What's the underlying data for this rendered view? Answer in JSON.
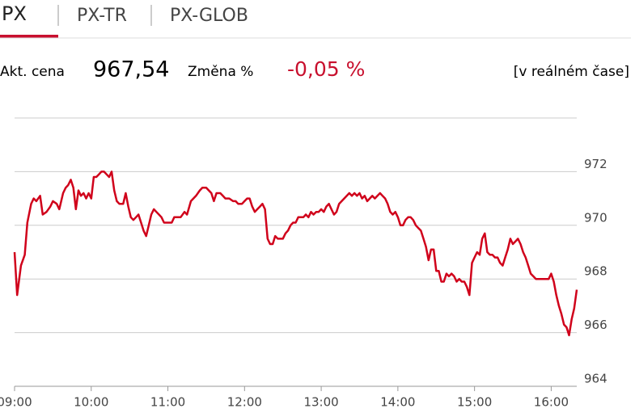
{
  "tabs": [
    "PX",
    "PX-TR",
    "PX-GLOB"
  ],
  "quote": {
    "price_label": "Akt. cena",
    "price": "967,54",
    "change_label": "Změna %",
    "change": "-0,05 %",
    "note": "[v reálném čase]"
  },
  "chart_data": {
    "type": "line",
    "x": [
      "09:00",
      "09:02",
      "09:05",
      "09:08",
      "09:10",
      "09:13",
      "09:15",
      "09:17",
      "09:20",
      "09:22",
      "09:25",
      "09:28",
      "09:30",
      "09:33",
      "09:35",
      "09:38",
      "09:40",
      "09:42",
      "09:44",
      "09:46",
      "09:48",
      "09:50",
      "09:52",
      "09:54",
      "09:56",
      "09:58",
      "10:00",
      "10:02",
      "10:04",
      "10:06",
      "10:08",
      "10:10",
      "10:12",
      "10:14",
      "10:16",
      "10:18",
      "10:20",
      "10:22",
      "10:25",
      "10:27",
      "10:29",
      "10:31",
      "10:33",
      "10:35",
      "10:37",
      "10:39",
      "10:41",
      "10:43",
      "10:45",
      "10:47",
      "10:49",
      "10:51",
      "10:53",
      "10:55",
      "10:57",
      "11:00",
      "11:03",
      "11:05",
      "11:08",
      "11:10",
      "11:13",
      "11:15",
      "11:18",
      "11:20",
      "11:22",
      "11:25",
      "11:27",
      "11:30",
      "11:32",
      "11:34",
      "11:36",
      "11:38",
      "11:41",
      "11:43",
      "11:45",
      "11:48",
      "11:51",
      "11:53",
      "11:55",
      "11:58",
      "12:00",
      "12:02",
      "12:04",
      "12:06",
      "12:08",
      "12:10",
      "12:12",
      "12:14",
      "12:16",
      "12:18",
      "12:20",
      "12:22",
      "12:24",
      "12:26",
      "12:28",
      "12:30",
      "12:32",
      "12:34",
      "12:36",
      "12:38",
      "12:40",
      "12:42",
      "12:44",
      "12:46",
      "12:48",
      "12:50",
      "12:52",
      "12:54",
      "12:56",
      "12:58",
      "13:00",
      "13:02",
      "13:04",
      "13:06",
      "13:08",
      "13:10",
      "13:12",
      "13:14",
      "13:16",
      "13:18",
      "13:20",
      "13:22",
      "13:24",
      "13:26",
      "13:28",
      "13:30",
      "13:32",
      "13:34",
      "13:36",
      "13:38",
      "13:40",
      "13:42",
      "13:44",
      "13:46",
      "13:48",
      "13:50",
      "13:52",
      "13:54",
      "13:56",
      "13:58",
      "14:00",
      "14:02",
      "14:04",
      "14:06",
      "14:08",
      "14:10",
      "14:12",
      "14:14",
      "14:16",
      "14:18",
      "14:20",
      "14:22",
      "14:24",
      "14:26",
      "14:28",
      "14:30",
      "14:32",
      "14:34",
      "14:36",
      "14:38",
      "14:40",
      "14:42",
      "14:44",
      "14:46",
      "14:48",
      "14:50",
      "14:52",
      "14:54",
      "14:56",
      "14:58",
      "15:00",
      "15:02",
      "15:04",
      "15:06",
      "15:08",
      "15:10",
      "15:12",
      "15:14",
      "15:16",
      "15:18",
      "15:20",
      "15:22",
      "15:24",
      "15:26",
      "15:28",
      "15:30",
      "15:32",
      "15:34",
      "15:36",
      "15:38",
      "15:40",
      "15:42",
      "15:44",
      "15:46",
      "15:48",
      "15:50",
      "15:52",
      "15:54",
      "15:56",
      "15:58",
      "16:00",
      "16:02",
      "16:04",
      "16:06",
      "16:08",
      "16:10",
      "16:12",
      "16:14",
      "16:16",
      "16:18",
      "16:20"
    ],
    "values": [
      969.0,
      967.4,
      968.5,
      968.9,
      970.1,
      970.8,
      971.0,
      970.9,
      971.1,
      970.4,
      970.5,
      970.7,
      970.9,
      970.8,
      970.6,
      971.2,
      971.4,
      971.5,
      971.7,
      971.4,
      970.6,
      971.3,
      971.1,
      971.2,
      971.0,
      971.2,
      971.0,
      971.8,
      971.8,
      971.9,
      972.0,
      972.0,
      971.9,
      971.8,
      972.0,
      971.3,
      970.9,
      970.8,
      970.8,
      971.2,
      970.7,
      970.3,
      970.2,
      970.3,
      970.4,
      970.1,
      969.8,
      969.6,
      970.0,
      970.4,
      970.6,
      970.5,
      970.4,
      970.3,
      970.1,
      970.1,
      970.1,
      970.3,
      970.3,
      970.3,
      970.5,
      970.4,
      970.9,
      971.0,
      971.1,
      971.3,
      971.4,
      971.4,
      971.3,
      971.2,
      970.9,
      971.2,
      971.2,
      971.1,
      971.0,
      971.0,
      970.9,
      970.9,
      970.8,
      970.8,
      970.9,
      971.0,
      971.0,
      970.7,
      970.5,
      970.6,
      970.7,
      970.8,
      970.6,
      969.5,
      969.3,
      969.3,
      969.6,
      969.5,
      969.5,
      969.5,
      969.7,
      969.8,
      970.0,
      970.1,
      970.1,
      970.3,
      970.3,
      970.3,
      970.4,
      970.3,
      970.5,
      970.4,
      970.5,
      970.5,
      970.6,
      970.5,
      970.7,
      970.8,
      970.6,
      970.4,
      970.5,
      970.8,
      970.9,
      971.0,
      971.1,
      971.2,
      971.1,
      971.2,
      971.1,
      971.2,
      971.0,
      971.1,
      970.9,
      971.0,
      971.1,
      971.0,
      971.1,
      971.2,
      971.1,
      971.0,
      970.8,
      970.5,
      970.4,
      970.5,
      970.3,
      970.0,
      970.0,
      970.2,
      970.3,
      970.3,
      970.2,
      970.0,
      969.9,
      969.8,
      969.5,
      969.2,
      968.7,
      969.1,
      969.1,
      968.3,
      968.3,
      967.9,
      967.9,
      968.2,
      968.1,
      968.2,
      968.1,
      967.9,
      968.0,
      967.9,
      967.9,
      967.7,
      967.4,
      968.6,
      968.8,
      969.0,
      968.9,
      969.5,
      969.7,
      969.0,
      968.9,
      968.9,
      968.8,
      968.8,
      968.6,
      968.5,
      968.8,
      969.1,
      969.5,
      969.3,
      969.4,
      969.5,
      969.3,
      969.0,
      968.8,
      968.5,
      968.2,
      968.1,
      968.0,
      968.0,
      968.0,
      968.0,
      968.0,
      968.0,
      968.2,
      967.9,
      967.4,
      967.0,
      966.7,
      966.3,
      966.2,
      965.9,
      966.5,
      966.9,
      967.6
    ],
    "color": "#d0021b",
    "xlim": [
      "09:00",
      "16:20"
    ],
    "xticks": [
      "09:00",
      "10:00",
      "11:00",
      "12:00",
      "13:00",
      "14:00",
      "15:00",
      "16:00"
    ],
    "ylim": [
      964,
      974
    ],
    "yticks": [
      964,
      966,
      968,
      970,
      972
    ],
    "grid": true
  }
}
